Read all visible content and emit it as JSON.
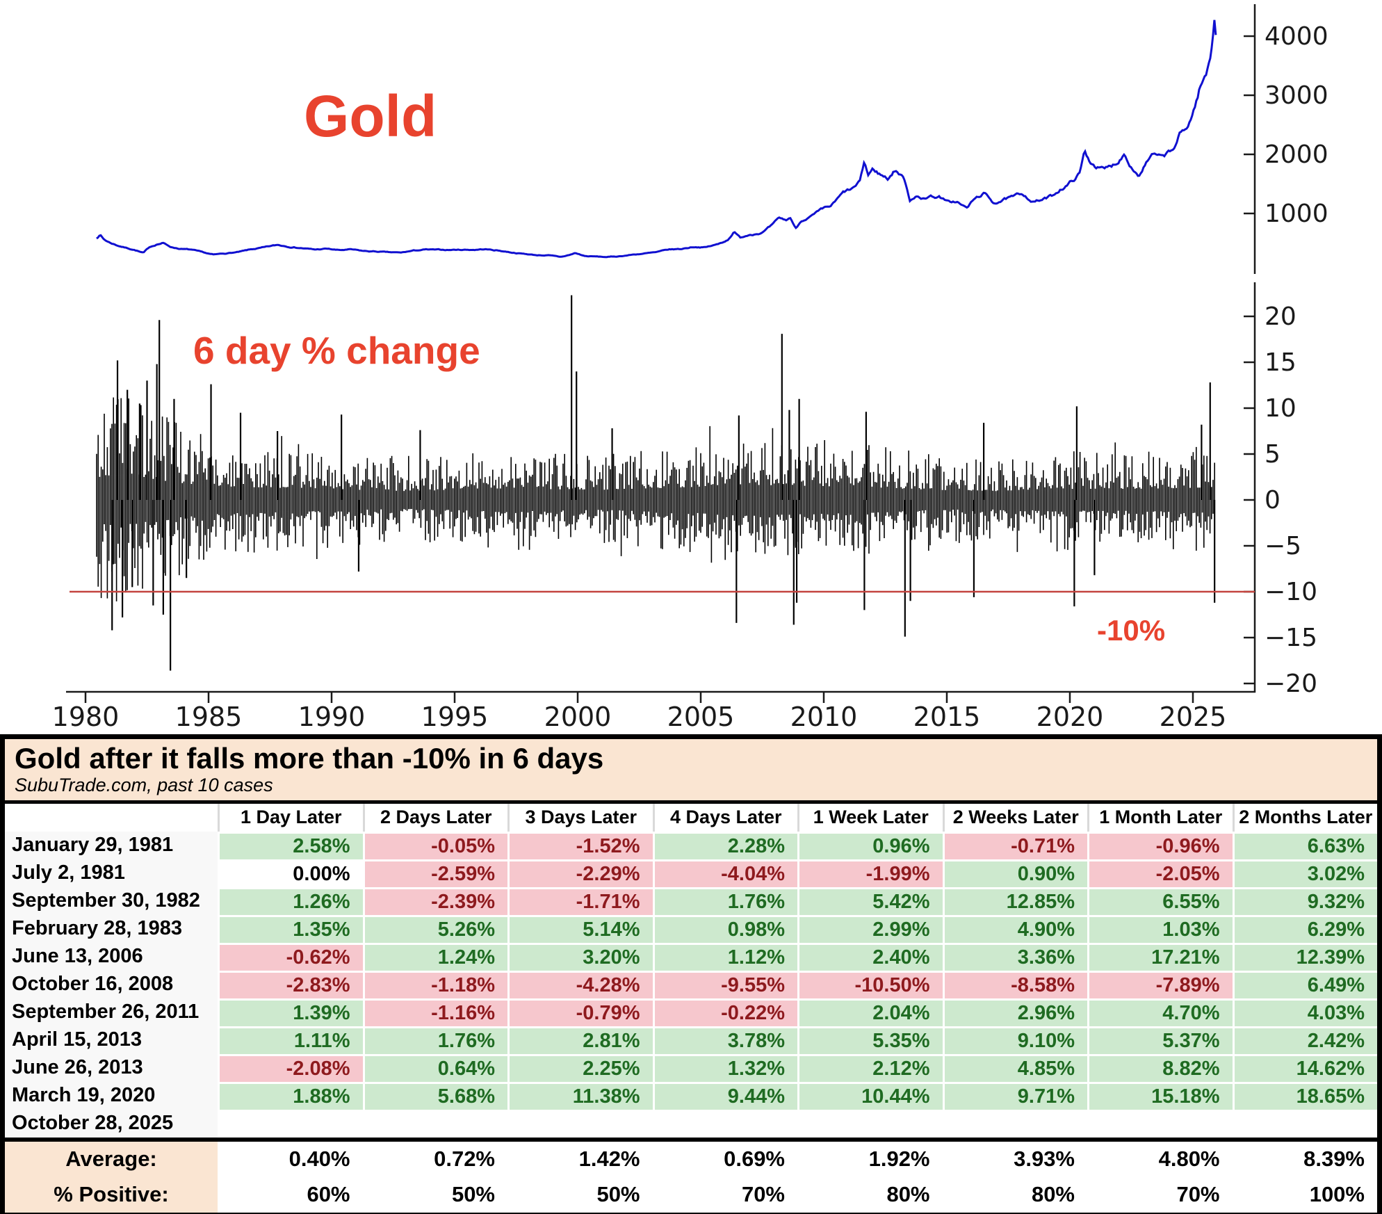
{
  "colors": {
    "accent_red": "#e8432e",
    "threshold_line_red": "#c4443f",
    "gold_line_blue": "#1010d0",
    "spike_black": "#000000",
    "axis_black": "#1a1a1a",
    "table_header_peach": "#fae5d2",
    "cell_green_bg": "#cde9ce",
    "cell_pink_bg": "#f6c7cd",
    "cell_green_text": "#1f6b22",
    "cell_red_text": "#8e1a1e"
  },
  "chart_data": [
    {
      "type": "line",
      "title": "Gold",
      "series_name": "gold-price",
      "yticks": [
        1000,
        2000,
        3000,
        4000
      ],
      "ylim": [
        0,
        4600
      ],
      "xlim": [
        1979.3,
        2027.6
      ],
      "grid": false,
      "noise_pct": 1.8,
      "x": [
        1980.45,
        1980.6,
        1980.75,
        1981.0,
        1981.3,
        1981.6,
        1982.0,
        1982.35,
        1982.6,
        1982.9,
        1983.15,
        1983.5,
        1983.9,
        1984.3,
        1984.8,
        1985.2,
        1985.7,
        1986.2,
        1986.8,
        1987.3,
        1987.8,
        1988.3,
        1988.8,
        1989.3,
        1989.8,
        1990.3,
        1990.8,
        1991.3,
        1991.8,
        1992.3,
        1992.8,
        1993.3,
        1993.8,
        1994.3,
        1994.8,
        1995.3,
        1995.8,
        1996.2,
        1996.8,
        1997.3,
        1997.8,
        1998.3,
        1998.8,
        1999.3,
        1999.7,
        1999.9,
        2000.3,
        2000.8,
        2001.2,
        2001.7,
        2002.2,
        2002.7,
        2003.2,
        2003.7,
        2004.2,
        2004.7,
        2005.2,
        2005.7,
        2006.1,
        2006.35,
        2006.6,
        2007.0,
        2007.5,
        2007.9,
        2008.2,
        2008.45,
        2008.65,
        2008.85,
        2009.1,
        2009.5,
        2009.9,
        2010.3,
        2010.8,
        2011.2,
        2011.45,
        2011.65,
        2011.8,
        2012.0,
        2012.3,
        2012.6,
        2012.9,
        2013.1,
        2013.3,
        2013.5,
        2013.75,
        2013.95,
        2014.3,
        2014.7,
        2015.0,
        2015.4,
        2015.8,
        2016.1,
        2016.5,
        2016.9,
        2017.3,
        2017.7,
        2018.1,
        2018.5,
        2018.9,
        2019.3,
        2019.6,
        2019.9,
        2020.15,
        2020.4,
        2020.6,
        2020.8,
        2021.1,
        2021.4,
        2021.7,
        2022.0,
        2022.2,
        2022.5,
        2022.8,
        2023.1,
        2023.4,
        2023.7,
        2023.95,
        2024.2,
        2024.45,
        2024.7,
        2024.95,
        2025.1,
        2025.25,
        2025.4,
        2025.55,
        2025.7,
        2025.8,
        2025.88,
        2025.95
      ],
      "y": [
        585,
        640,
        560,
        505,
        460,
        425,
        385,
        330,
        430,
        480,
        500,
        430,
        400,
        385,
        335,
        300,
        325,
        345,
        395,
        425,
        465,
        440,
        415,
        388,
        402,
        378,
        388,
        362,
        355,
        342,
        334,
        368,
        388,
        382,
        384,
        388,
        386,
        396,
        372,
        342,
        318,
        296,
        292,
        262,
        300,
        330,
        278,
        270,
        262,
        276,
        302,
        322,
        342,
        388,
        398,
        436,
        428,
        478,
        555,
        690,
        590,
        648,
        678,
        795,
        918,
        878,
        928,
        742,
        885,
        955,
        1050,
        1120,
        1345,
        1420,
        1510,
        1875,
        1645,
        1745,
        1660,
        1590,
        1740,
        1665,
        1560,
        1230,
        1320,
        1235,
        1295,
        1285,
        1190,
        1200,
        1085,
        1230,
        1340,
        1180,
        1235,
        1270,
        1335,
        1200,
        1230,
        1295,
        1410,
        1480,
        1570,
        1680,
        2045,
        1890,
        1800,
        1740,
        1795,
        1900,
        2030,
        1815,
        1645,
        1865,
        1990,
        1925,
        2000,
        2060,
        2320,
        2400,
        2640,
        2840,
        3080,
        3240,
        3340,
        3630,
        3950,
        4380,
        4010
      ]
    },
    {
      "type": "line",
      "title": "6 day % change",
      "series_name": "gold-6day-pct-change",
      "yticks": [
        20,
        15,
        10,
        5,
        0,
        -5,
        -10,
        -15,
        -20
      ],
      "ylim": [
        -21,
        22.5
      ],
      "xticks": [
        1980,
        1985,
        1990,
        1995,
        2000,
        2005,
        2010,
        2015,
        2020,
        2025
      ],
      "xlim": [
        1979.3,
        2027.6
      ],
      "grid": false,
      "threshold": -10,
      "threshold_label": "-10%",
      "volatility_envelope": [
        [
          1980.45,
          7.5
        ],
        [
          1981.2,
          9.5
        ],
        [
          1984.0,
          6.0
        ],
        [
          1986.0,
          4.8
        ],
        [
          1993.0,
          3.2
        ],
        [
          1997.0,
          4.2
        ],
        [
          2001.0,
          3.6
        ],
        [
          2005.0,
          4.8
        ],
        [
          2006.0,
          5.6
        ],
        [
          2009.0,
          5.2
        ],
        [
          2012.0,
          4.6
        ],
        [
          2014.0,
          3.8
        ],
        [
          2017.0,
          3.2
        ],
        [
          2019.5,
          4.2
        ],
        [
          2021.0,
          3.8
        ],
        [
          2024.0,
          4.2
        ],
        [
          2025.95,
          4.6
        ]
      ],
      "extremes": [
        [
          1981.08,
          -14.2
        ],
        [
          1981.3,
          15.2
        ],
        [
          1981.5,
          -12.8
        ],
        [
          1981.7,
          12.0
        ],
        [
          1981.9,
          -9.5
        ],
        [
          1982.2,
          10.5
        ],
        [
          1982.5,
          13.0
        ],
        [
          1982.75,
          -11.5
        ],
        [
          1982.9,
          14.8
        ],
        [
          1983.0,
          19.6
        ],
        [
          1983.16,
          -12.5
        ],
        [
          1983.45,
          -18.6
        ],
        [
          1983.6,
          11.0
        ],
        [
          1984.1,
          -8.5
        ],
        [
          1985.1,
          12.6
        ],
        [
          1986.3,
          9.5
        ],
        [
          1987.8,
          7.5
        ],
        [
          1990.4,
          9.3
        ],
        [
          1991.1,
          -7.8
        ],
        [
          1993.6,
          7.6
        ],
        [
          1999.75,
          22.3
        ],
        [
          1999.95,
          14.0
        ],
        [
          2001.4,
          7.8
        ],
        [
          2006.45,
          -13.4
        ],
        [
          2006.55,
          9.2
        ],
        [
          2008.3,
          18.1
        ],
        [
          2008.6,
          9.8
        ],
        [
          2008.78,
          -13.6
        ],
        [
          2008.9,
          -11.2
        ],
        [
          2009.0,
          11.0
        ],
        [
          2011.65,
          -12.0
        ],
        [
          2011.72,
          9.6
        ],
        [
          2013.3,
          -14.9
        ],
        [
          2013.52,
          -11.0
        ],
        [
          2016.1,
          -10.6
        ],
        [
          2016.5,
          8.4
        ],
        [
          2020.18,
          -11.6
        ],
        [
          2020.28,
          10.2
        ],
        [
          2021.0,
          -8.2
        ],
        [
          2025.35,
          8.2
        ],
        [
          2025.7,
          12.8
        ],
        [
          2025.88,
          -11.2
        ]
      ]
    }
  ],
  "table": {
    "title": "Gold after it falls more than -10% in 6 days",
    "subtitle": "SubuTrade.com, past 10 cases",
    "columns": [
      "1 Day Later",
      "2 Days Later",
      "3 Days Later",
      "4 Days Later",
      "1 Week Later",
      "2 Weeks Later",
      "1 Month Later",
      "2 Months Later"
    ],
    "rows": [
      {
        "date": "January 29, 1981",
        "values": [
          "2.58%",
          "-0.05%",
          "-1.52%",
          "2.28%",
          "0.96%",
          "-0.71%",
          "-0.96%",
          "6.63%"
        ]
      },
      {
        "date": "July 2, 1981",
        "values": [
          "0.00%",
          "-2.59%",
          "-2.29%",
          "-4.04%",
          "-1.99%",
          "0.90%",
          "-2.05%",
          "3.02%"
        ]
      },
      {
        "date": "September 30, 1982",
        "values": [
          "1.26%",
          "-2.39%",
          "-1.71%",
          "1.76%",
          "5.42%",
          "12.85%",
          "6.55%",
          "9.32%"
        ]
      },
      {
        "date": "February 28, 1983",
        "values": [
          "1.35%",
          "5.26%",
          "5.14%",
          "0.98%",
          "2.99%",
          "4.90%",
          "1.03%",
          "6.29%"
        ]
      },
      {
        "date": "June 13, 2006",
        "values": [
          "-0.62%",
          "1.24%",
          "3.20%",
          "1.12%",
          "2.40%",
          "3.36%",
          "17.21%",
          "12.39%"
        ]
      },
      {
        "date": "October 16, 2008",
        "values": [
          "-2.83%",
          "-1.18%",
          "-4.28%",
          "-9.55%",
          "-10.50%",
          "-8.58%",
          "-7.89%",
          "6.49%"
        ]
      },
      {
        "date": "September 26, 2011",
        "values": [
          "1.39%",
          "-1.16%",
          "-0.79%",
          "-0.22%",
          "2.04%",
          "2.96%",
          "4.70%",
          "4.03%"
        ]
      },
      {
        "date": "April 15, 2013",
        "values": [
          "1.11%",
          "1.76%",
          "2.81%",
          "3.78%",
          "5.35%",
          "9.10%",
          "5.37%",
          "2.42%"
        ]
      },
      {
        "date": "June 26, 2013",
        "values": [
          "-2.08%",
          "0.64%",
          "2.25%",
          "1.32%",
          "2.12%",
          "4.85%",
          "8.82%",
          "14.62%"
        ]
      },
      {
        "date": "March 19, 2020",
        "values": [
          "1.88%",
          "5.68%",
          "11.38%",
          "9.44%",
          "10.44%",
          "9.71%",
          "15.18%",
          "18.65%"
        ]
      },
      {
        "date": "October 28, 2025",
        "values": [
          "",
          "",
          "",
          "",
          "",
          "",
          "",
          ""
        ]
      }
    ],
    "average": {
      "label": "Average:",
      "values": [
        "0.40%",
        "0.72%",
        "1.42%",
        "0.69%",
        "1.92%",
        "3.93%",
        "4.80%",
        "8.39%"
      ]
    },
    "pct_positive": {
      "label": "% Positive:",
      "values": [
        "60%",
        "50%",
        "50%",
        "70%",
        "80%",
        "80%",
        "70%",
        "100%"
      ]
    }
  }
}
